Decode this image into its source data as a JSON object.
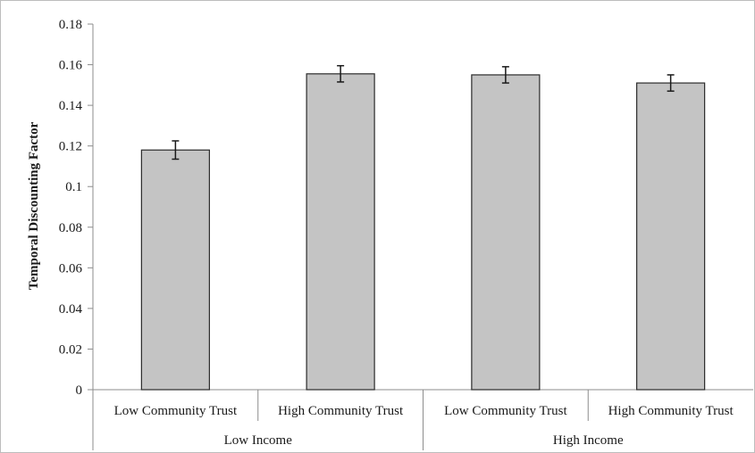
{
  "chart_data": {
    "type": "bar",
    "title": "",
    "ylabel": "Temporal Discounting Factor",
    "xlabel": "",
    "ylim": [
      0,
      0.18
    ],
    "yticks": [
      "0",
      "0.02",
      "0.04",
      "0.06",
      "0.08",
      "0.1",
      "0.12",
      "0.14",
      "0.16",
      "0.18"
    ],
    "grid": false,
    "legend": "none",
    "categories": [
      "Low Community Trust",
      "High Community Trust",
      "Low Community Trust",
      "High Community Trust"
    ],
    "groups": [
      {
        "label": "Low Income",
        "categories": [
          0,
          1
        ]
      },
      {
        "label": "High Income",
        "categories": [
          2,
          3
        ]
      }
    ],
    "values": [
      0.118,
      0.1555,
      0.155,
      0.151
    ],
    "error": [
      0.0045,
      0.004,
      0.004,
      0.004
    ],
    "colors": {
      "bar_fill": "#c4c4c4",
      "bar_stroke": "#2b2b2b",
      "axis": "#8c8c8c",
      "error_bar": "#1a1a1a"
    }
  }
}
